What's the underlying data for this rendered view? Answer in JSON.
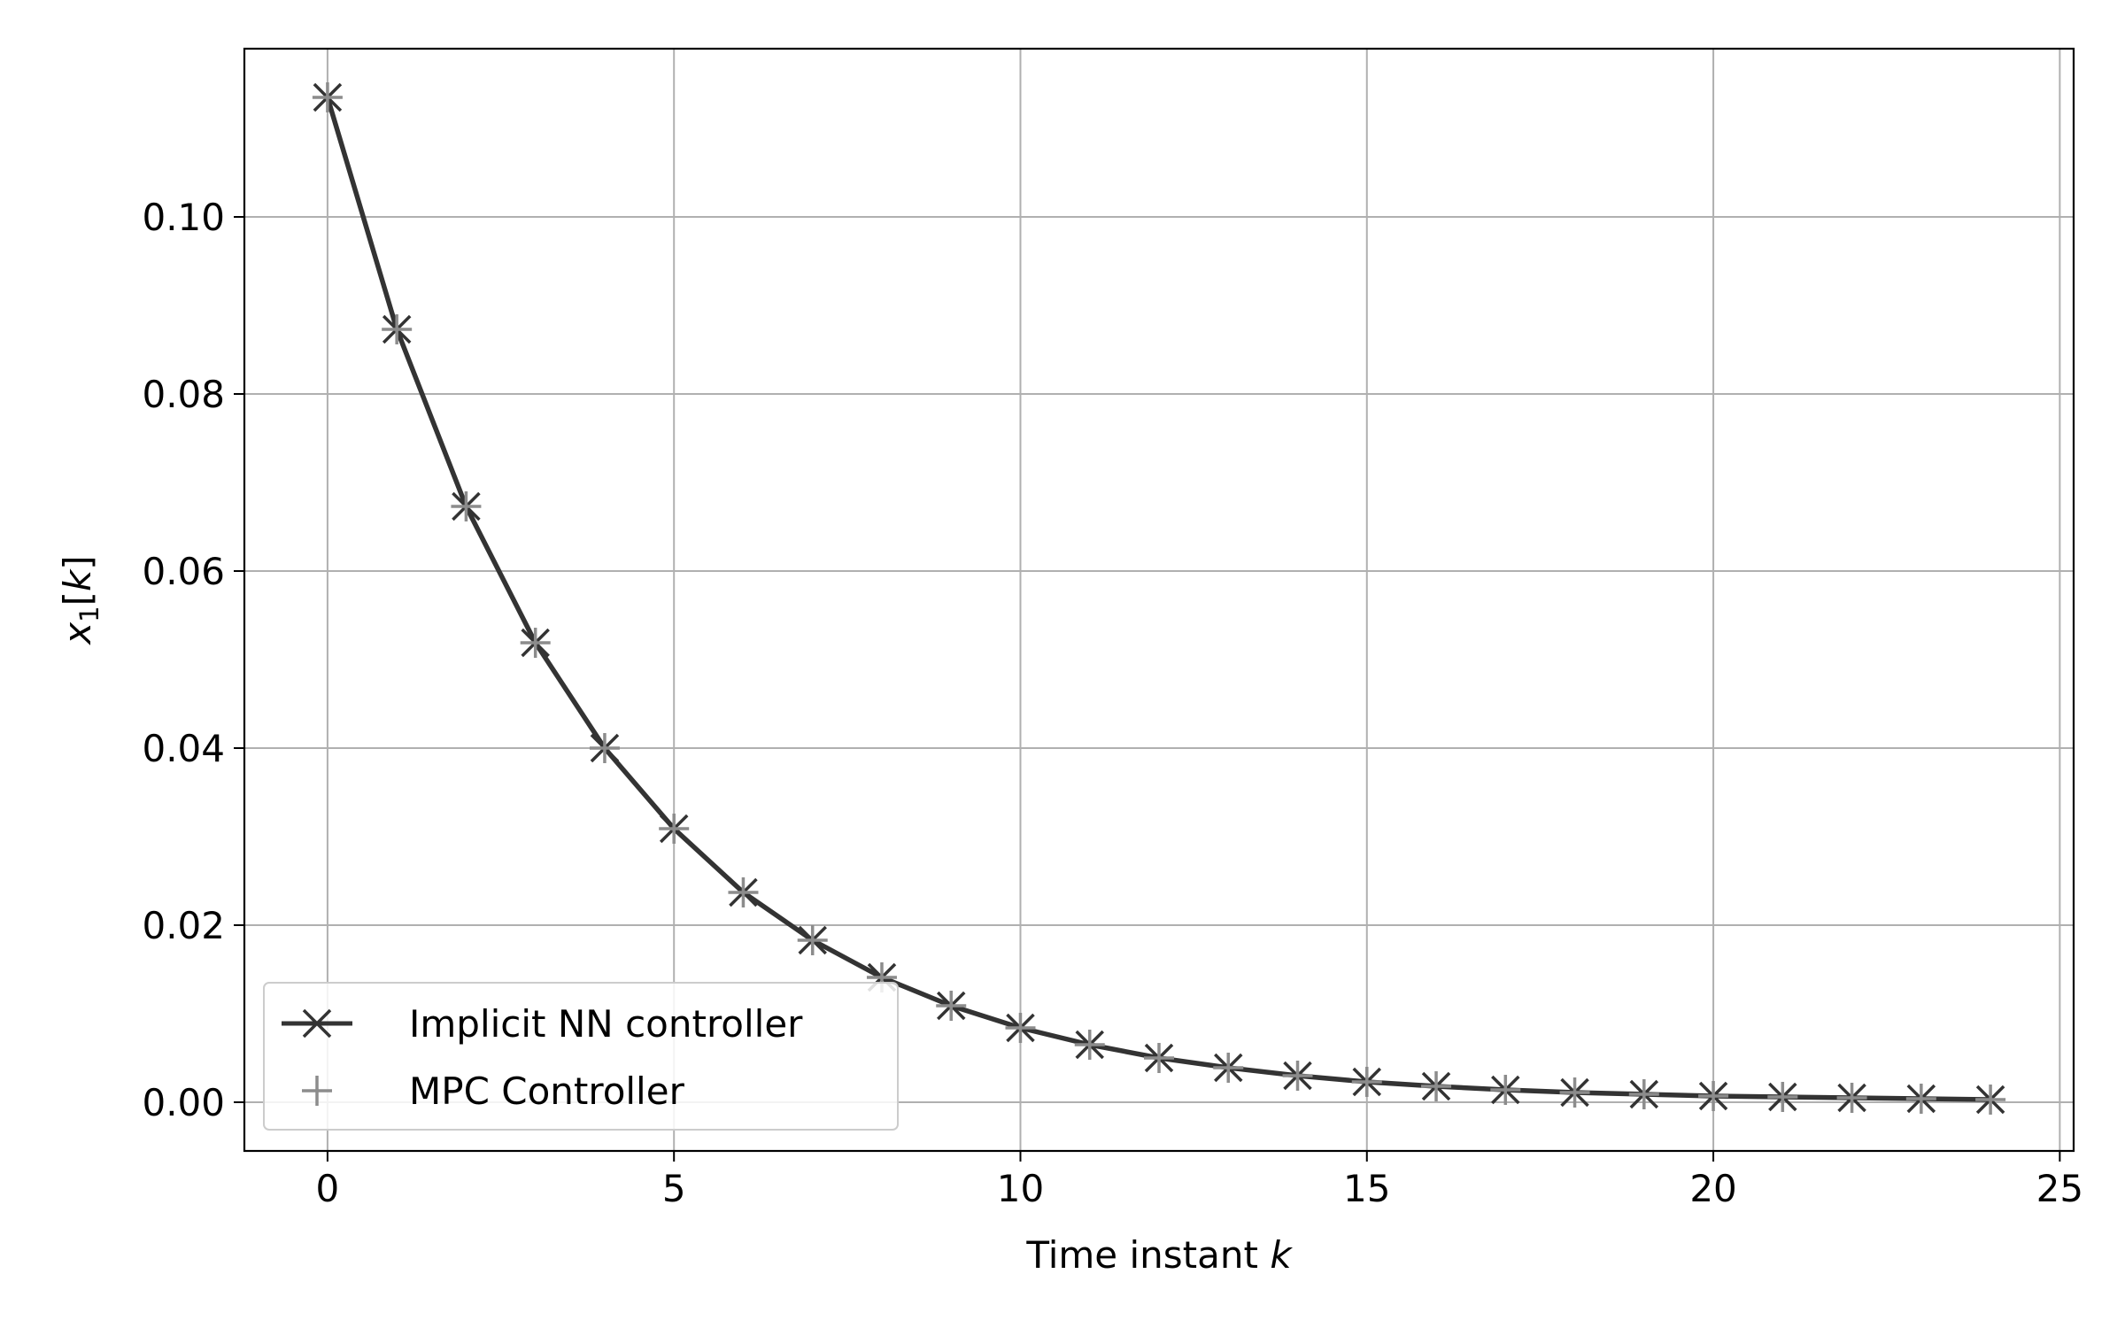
{
  "chart_data": {
    "type": "line",
    "title": "",
    "xlabel_prefix": "Time instant ",
    "xlabel_var": "k",
    "ylabel_var": "x",
    "ylabel_sub": "1",
    "ylabel_bracket_open": "[",
    "ylabel_bracket_var": "k",
    "ylabel_bracket_close": "]",
    "xlim": [
      -1.2,
      25.2
    ],
    "ylim": [
      -0.0055,
      0.119
    ],
    "xticks": [
      0,
      5,
      10,
      15,
      20,
      25
    ],
    "xtick_labels": [
      "0",
      "5",
      "10",
      "15",
      "20",
      "25"
    ],
    "yticks": [
      0.0,
      0.02,
      0.04,
      0.06,
      0.08,
      0.1
    ],
    "ytick_labels": [
      "0.00",
      "0.02",
      "0.04",
      "0.06",
      "0.08",
      "0.10"
    ],
    "grid": true,
    "legend_position": "lower-left",
    "x": [
      0,
      1,
      2,
      3,
      4,
      5,
      6,
      7,
      8,
      9,
      10,
      11,
      12,
      13,
      14,
      15,
      16,
      17,
      18,
      19,
      20,
      21,
      22,
      23,
      24
    ],
    "series": [
      {
        "name": "Implicit NN controller",
        "marker": "x",
        "linestyle": "solid",
        "color": "#333333",
        "values": [
          0.1135,
          0.0873,
          0.0673,
          0.0519,
          0.04,
          0.0309,
          0.0237,
          0.0183,
          0.0141,
          0.0109,
          0.0084,
          0.0065,
          0.005,
          0.0039,
          0.003,
          0.0023,
          0.0018,
          0.0014,
          0.0011,
          0.0009,
          0.0007,
          0.0006,
          0.0005,
          0.0004,
          0.0003
        ]
      },
      {
        "name": "MPC Controller",
        "marker": "+",
        "linestyle": "none",
        "color": "#8c8c8c",
        "values": [
          0.1135,
          0.0873,
          0.0673,
          0.0519,
          0.04,
          0.0309,
          0.0237,
          0.0183,
          0.0141,
          0.0109,
          0.0084,
          0.0065,
          0.005,
          0.0039,
          0.003,
          0.0023,
          0.0018,
          0.0014,
          0.0011,
          0.0009,
          0.0007,
          0.0006,
          0.0005,
          0.0004,
          0.0003
        ]
      }
    ]
  }
}
